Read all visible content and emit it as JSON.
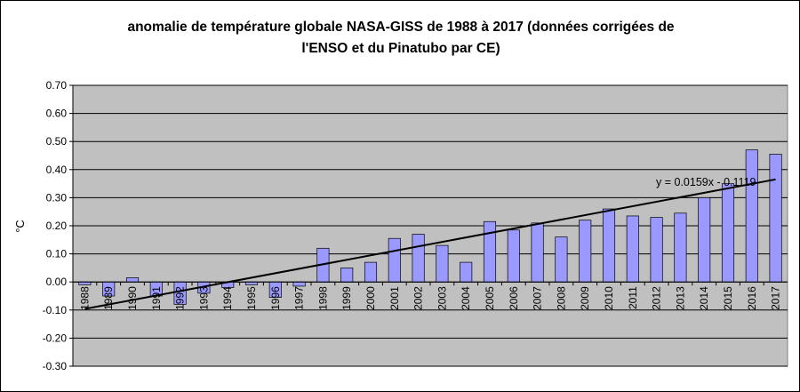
{
  "chart_data": {
    "type": "bar",
    "title": "anomalie de température globale NASA-GISS de 1988 à 2017 (données corrigées de l'ENSO et du Pinatubo par CE)",
    "title_lines": [
      "anomalie de température globale NASA-GISS de 1988 à 2017 (données corrigées de",
      "l'ENSO et du Pinatubo par CE)"
    ],
    "xlabel": "",
    "ylabel": "°C",
    "ylim": [
      -0.3,
      0.7
    ],
    "yticks": [
      "0.70",
      "0.60",
      "0.50",
      "0.40",
      "0.30",
      "0.20",
      "0.10",
      "0.00",
      "-0.10",
      "-0.20",
      "-0.30"
    ],
    "grid": true,
    "categories": [
      "1988",
      "1989",
      "1990",
      "1991",
      "1992",
      "1993",
      "1994",
      "1995",
      "1996",
      "1997",
      "1998",
      "1999",
      "2000",
      "2001",
      "2002",
      "2003",
      "2004",
      "2005",
      "2006",
      "2007",
      "2008",
      "2009",
      "2010",
      "2011",
      "2012",
      "2013",
      "2014",
      "2015",
      "2016",
      "2017"
    ],
    "values": [
      -0.01,
      -0.05,
      0.015,
      -0.05,
      -0.08,
      -0.04,
      -0.02,
      -0.01,
      -0.055,
      -0.015,
      0.12,
      0.05,
      0.07,
      0.155,
      0.17,
      0.13,
      0.07,
      0.215,
      0.185,
      0.21,
      0.16,
      0.22,
      0.26,
      0.235,
      0.23,
      0.245,
      0.3,
      0.35,
      0.47,
      0.455
    ],
    "trendline": {
      "slope": 0.0159,
      "intercept": -0.1119,
      "label": "y = 0.0159x - 0.1119"
    },
    "colors": {
      "bar": "#9999ff",
      "plot_bg": "#c0c0c0",
      "trend": "#000000"
    }
  }
}
